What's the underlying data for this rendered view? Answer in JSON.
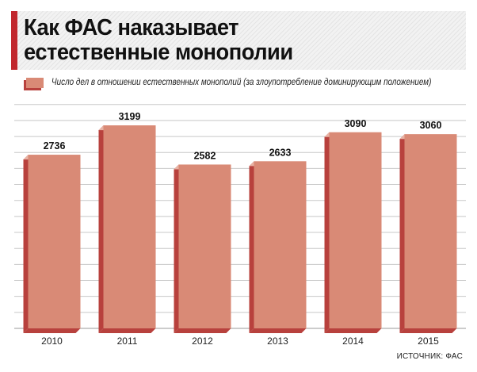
{
  "title_line1": "Как ФАС наказывает",
  "title_line2": "естественные монополии",
  "source": "ИСТОЧНИК: ФАС",
  "colors": {
    "bar_front": "#d98a76",
    "bar_side": "#b8413d",
    "bar_top": "#e8b3a4",
    "accent": "#c1272d",
    "grid": "#c8c8c8"
  },
  "chart_data": {
    "type": "bar",
    "categories": [
      "2010",
      "2011",
      "2012",
      "2013",
      "2014",
      "2015"
    ],
    "series": [
      {
        "name": "Число дел в отношении естественных монополий (за злоупотребление доминирующим положением)",
        "values": [
          2736,
          3199,
          2582,
          2633,
          3090,
          3060
        ]
      }
    ],
    "title": "Как ФАС наказывает естественные монополии",
    "xlabel": "",
    "ylabel": "",
    "ylim": [
      0,
      3600
    ],
    "grid": true,
    "legend": "top-left",
    "data_labels": true
  }
}
